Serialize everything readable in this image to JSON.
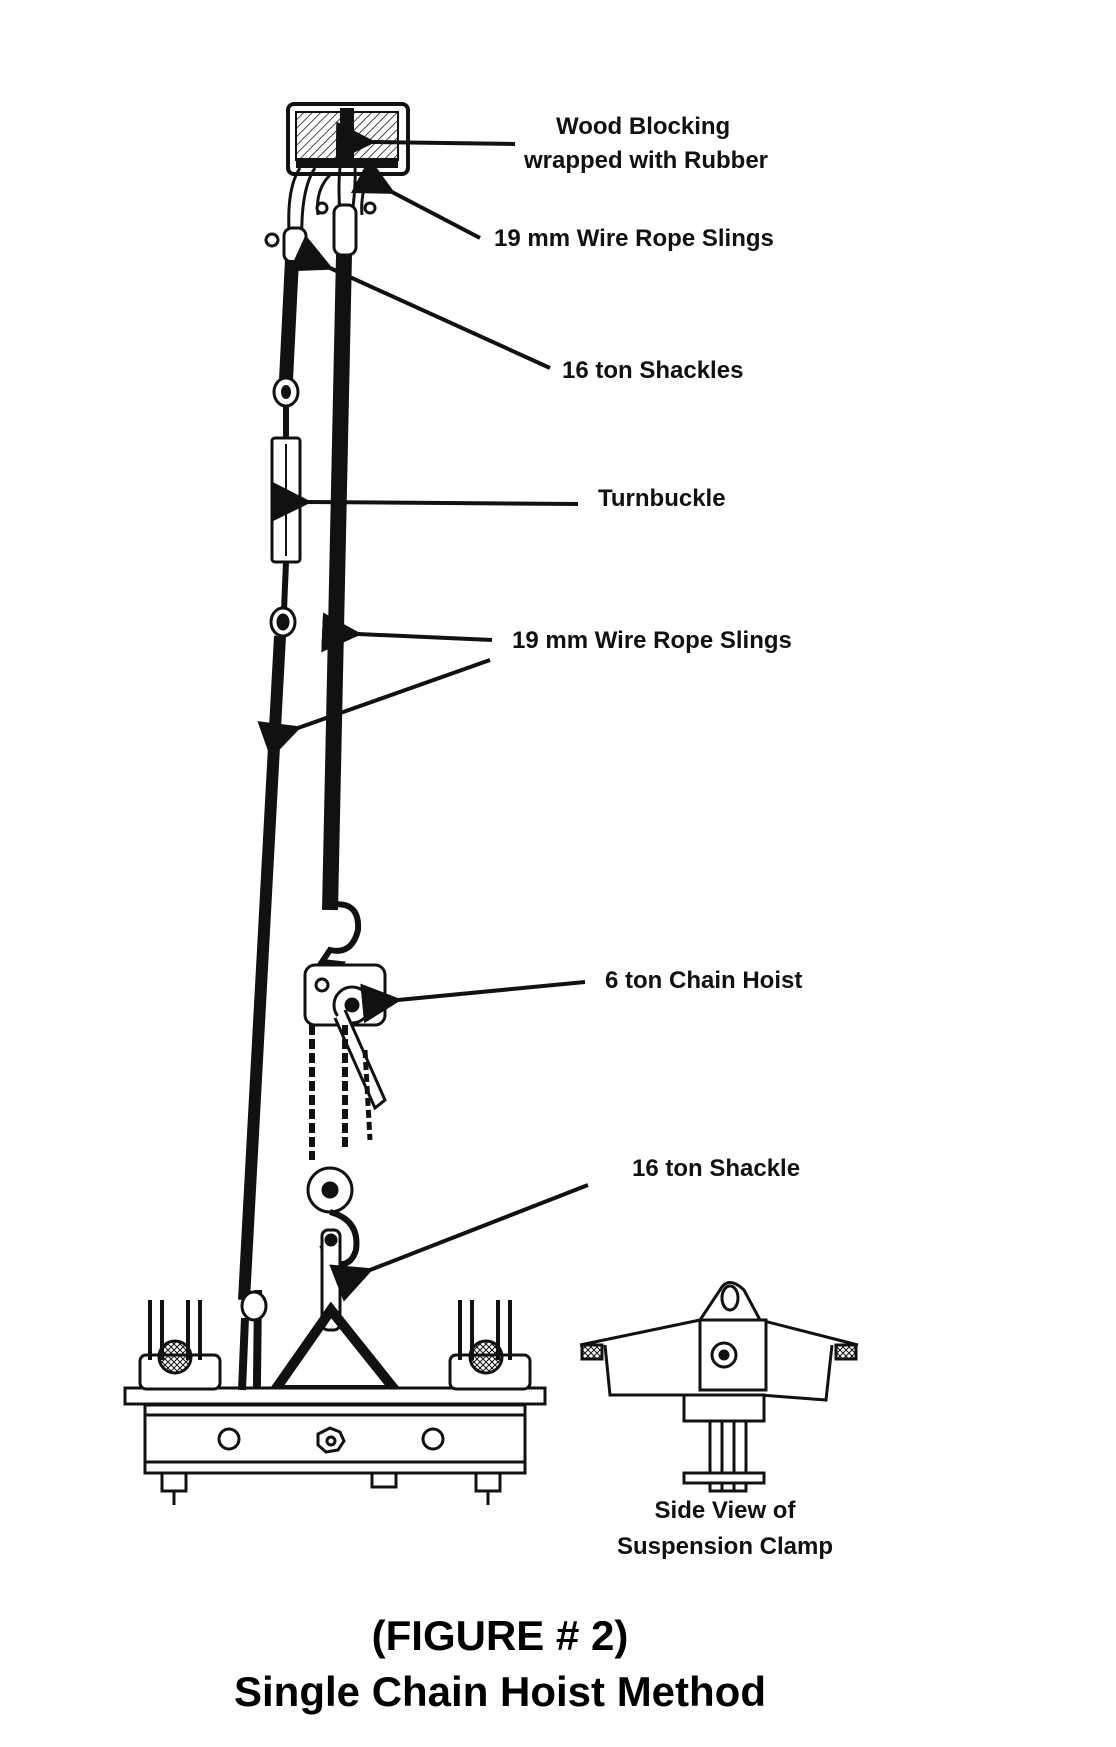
{
  "labels": {
    "wood_blocking_line1": "Wood Blocking",
    "wood_blocking_line2": "wrapped with Rubber",
    "wire_rope_slings_top": "19 mm Wire Rope Slings",
    "shackles_16_ton": "16 ton Shackles",
    "turnbuckle": "Turnbuckle",
    "wire_rope_slings_mid": "19 mm Wire Rope Slings",
    "chain_hoist_6_ton": "6 ton Chain Hoist",
    "shackle_16_ton": "16 ton Shackle",
    "side_view_line1": "Side View of",
    "side_view_line2": "Suspension Clamp"
  },
  "figure": {
    "number": "(FIGURE # 2)",
    "title": "Single Chain Hoist Method"
  },
  "colors": {
    "ink": "#111111",
    "paper": "#ffffff"
  }
}
